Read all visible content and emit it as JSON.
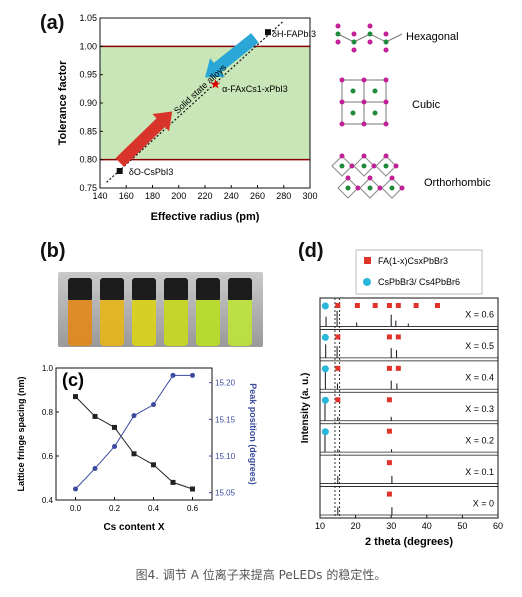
{
  "caption": "图4. 调节 A 位离子来提高 PeLEDs 的稳定性。",
  "panel_a": {
    "tag": "(a)",
    "label_top": "δH-FAPbI3",
    "label_bottom": "δO-CsPbI3",
    "label_star": "α-FAxCs1-xPbI3",
    "band_label": "Solid state alloys",
    "structures": [
      "Hexagonal",
      "Cubic",
      "Orthorhombic"
    ],
    "colors": {
      "band": "#c8e6b8",
      "boundary": "#8b0000",
      "arrow_red": "#d9342b",
      "arrow_blue": "#2aa7d6"
    }
  },
  "panel_b": {
    "tag": "(b)",
    "vial_colors": [
      "#e08a1e",
      "#e6b51c",
      "#d9d21a",
      "#c8d81d",
      "#b9dd26",
      "#bde33a"
    ]
  },
  "panel_c": {
    "tag": "(c)"
  },
  "panel_d": {
    "tag": "(d)",
    "legend": [
      "FA(1-x)CsxPbBr3",
      "CsPbBr3/ Cs4PbBr6"
    ],
    "traces": [
      "X = 0.6",
      "X = 0.5",
      "X = 0.4",
      "X = 0.3",
      "X = 0.2",
      "X = 0.1",
      "X = 0"
    ]
  },
  "chart_data": [
    {
      "type": "scatter",
      "title": "",
      "xlabel": "Effective radius (pm)",
      "ylabel": "Tolerance factor",
      "xlim": [
        140,
        300
      ],
      "ylim": [
        0.75,
        1.05
      ],
      "x_ticks": [
        "140",
        "160",
        "180",
        "200",
        "220",
        "240",
        "260",
        "280",
        "300"
      ],
      "y_ticks": [
        "0.75",
        "0.80",
        "0.85",
        "0.90",
        "0.95",
        "1.00",
        "1.05"
      ],
      "boundaries": [
        0.8,
        1.0
      ],
      "points": [
        {
          "x": 155,
          "y": 0.78,
          "marker": "square"
        },
        {
          "x": 228,
          "y": 0.933,
          "marker": "star"
        },
        {
          "x": 268,
          "y": 1.025,
          "marker": "square"
        }
      ],
      "trend_line": [
        [
          145,
          0.76
        ],
        [
          280,
          1.045
        ]
      ]
    },
    {
      "type": "line",
      "title": "",
      "xlabel": "Cs content X",
      "ylabel": "Lattice fringe spacing (nm)",
      "y2label": "Peak position (degrees)",
      "xlim": [
        -0.1,
        0.7
      ],
      "ylim": [
        0.4,
        1.0
      ],
      "y2lim": [
        15.04,
        15.22
      ],
      "x_ticks": [
        "0.0",
        "0.2",
        "0.4",
        "0.6"
      ],
      "y_ticks": [
        "0.4",
        "0.6",
        "0.8",
        "1.0"
      ],
      "y2_ticks": [
        "15.05",
        "15.10",
        "15.15",
        "15.20"
      ],
      "x": [
        0.0,
        0.1,
        0.2,
        0.3,
        0.4,
        0.5,
        0.6
      ],
      "series": [
        {
          "name": "",
          "axis": "left",
          "color": "#222222",
          "values": [
            0.87,
            0.78,
            0.73,
            0.61,
            0.56,
            0.48,
            0.45
          ]
        },
        {
          "name": "",
          "axis": "right",
          "color": "#3b4aa0",
          "values": [
            15.055,
            15.083,
            15.113,
            15.155,
            15.17,
            15.21,
            15.21
          ]
        }
      ]
    },
    {
      "type": "line",
      "title": "",
      "xlabel": "2 theta (degrees)",
      "ylabel": "Intensity (a. u.)",
      "xlim": [
        10,
        60
      ],
      "x_ticks": [
        "10",
        "20",
        "30",
        "40",
        "50",
        "60"
      ],
      "labels": [
        "X = 0.6",
        "X = 0.5",
        "X = 0.4",
        "X = 0.3",
        "X = 0.2",
        "X = 0.1",
        "X = 0"
      ],
      "peaks": [
        [
          [
            11.7,
            0.5
          ],
          [
            14.8,
            0.8
          ],
          [
            20.3,
            0.2
          ],
          [
            30.0,
            0.6
          ],
          [
            31.3,
            0.3
          ],
          [
            34.8,
            0.15
          ]
        ],
        [
          [
            11.6,
            0.7
          ],
          [
            14.8,
            0.6
          ],
          [
            30.0,
            0.5
          ],
          [
            31.5,
            0.4
          ]
        ],
        [
          [
            11.5,
            0.9
          ],
          [
            14.9,
            0.3
          ],
          [
            30.0,
            0.45
          ],
          [
            31.6,
            0.3
          ]
        ],
        [
          [
            11.4,
            1.0
          ],
          [
            15.0,
            0.2
          ],
          [
            30.0,
            0.2
          ]
        ],
        [
          [
            11.4,
            1.0
          ],
          [
            15.0,
            0.15
          ],
          [
            30.1,
            0.15
          ]
        ],
        [
          [
            15.0,
            0.4
          ],
          [
            30.2,
            0.4
          ]
        ],
        [
          [
            15.0,
            0.4
          ],
          [
            30.2,
            0.4
          ]
        ]
      ],
      "fa_marker_positions": [
        [
          15,
          20.5,
          25.5,
          29.5,
          32,
          37,
          43
        ],
        [
          15,
          29.5,
          32
        ],
        [
          15,
          29.5,
          32
        ],
        [
          15,
          29.5
        ],
        [
          29.5
        ],
        [
          29.5
        ],
        [
          29.5
        ]
      ],
      "cs_marker_positions": [
        [
          11.5
        ],
        [
          11.5
        ],
        [
          11.5
        ],
        [
          11.5
        ],
        [
          11.5
        ],
        [],
        []
      ],
      "reference_lines": [
        14.2,
        15.5
      ]
    }
  ]
}
